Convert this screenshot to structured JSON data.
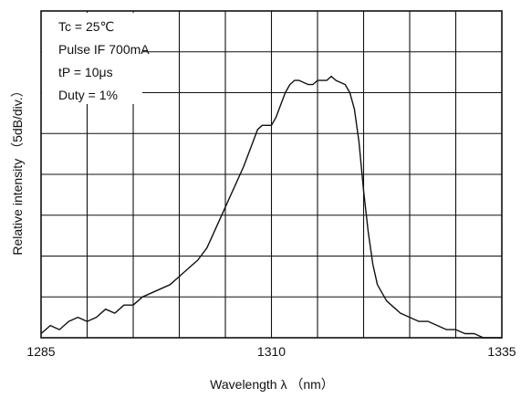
{
  "chart_data": {
    "type": "line",
    "title": "",
    "xlabel": "Wavelength  λ  （nm）",
    "ylabel": "Relative intensity  （5dB/div.）",
    "x_tick_labels": [
      "1285",
      "1310",
      "1335"
    ],
    "x_ticks": [
      1285,
      1310,
      1335
    ],
    "xlim": [
      1285,
      1335
    ],
    "ylim": [
      0,
      8
    ],
    "y_unit_note": "divisions of 5 dB",
    "grid": true,
    "x_grid_divisions": 10,
    "y_grid_divisions": 8,
    "legend": "none",
    "annotations": [
      "Tc = 25℃",
      "Pulse IF 700mA",
      "tP = 10μs",
      "Duty = 1%"
    ],
    "series": [
      {
        "color": "#111111",
        "x": [
          1285.0,
          1286.0,
          1287.0,
          1288.0,
          1289.0,
          1290.0,
          1291.0,
          1292.0,
          1293.0,
          1294.0,
          1295.0,
          1296.0,
          1297.0,
          1298.0,
          1299.0,
          1300.0,
          1301.0,
          1302.0,
          1303.0,
          1304.0,
          1305.0,
          1306.0,
          1307.0,
          1308.0,
          1308.5,
          1309.0,
          1310.0,
          1310.5,
          1311.0,
          1311.5,
          1312.0,
          1312.5,
          1313.0,
          1314.0,
          1314.5,
          1315.0,
          1316.0,
          1316.5,
          1317.0,
          1318.0,
          1318.5,
          1319.0,
          1319.5,
          1320.0,
          1320.5,
          1321.0,
          1321.5,
          1322.0,
          1322.5,
          1323.0,
          1323.5,
          1324.0,
          1325.0,
          1326.0,
          1327.0,
          1328.0,
          1329.0,
          1330.0,
          1331.0,
          1332.0,
          1333.0,
          1334.0,
          1335.0
        ],
        "y": [
          0.1,
          0.3,
          0.2,
          0.4,
          0.5,
          0.4,
          0.5,
          0.7,
          0.6,
          0.8,
          0.8,
          1.0,
          1.1,
          1.2,
          1.3,
          1.5,
          1.7,
          1.9,
          2.2,
          2.7,
          3.2,
          3.7,
          4.2,
          4.8,
          5.1,
          5.2,
          5.2,
          5.4,
          5.7,
          6.0,
          6.2,
          6.3,
          6.3,
          6.2,
          6.2,
          6.3,
          6.3,
          6.4,
          6.3,
          6.2,
          6.0,
          5.6,
          4.8,
          3.6,
          2.6,
          1.8,
          1.3,
          1.1,
          0.9,
          0.8,
          0.7,
          0.6,
          0.5,
          0.4,
          0.4,
          0.3,
          0.2,
          0.2,
          0.1,
          0.1,
          0.0,
          0.0,
          0.0
        ]
      }
    ]
  }
}
